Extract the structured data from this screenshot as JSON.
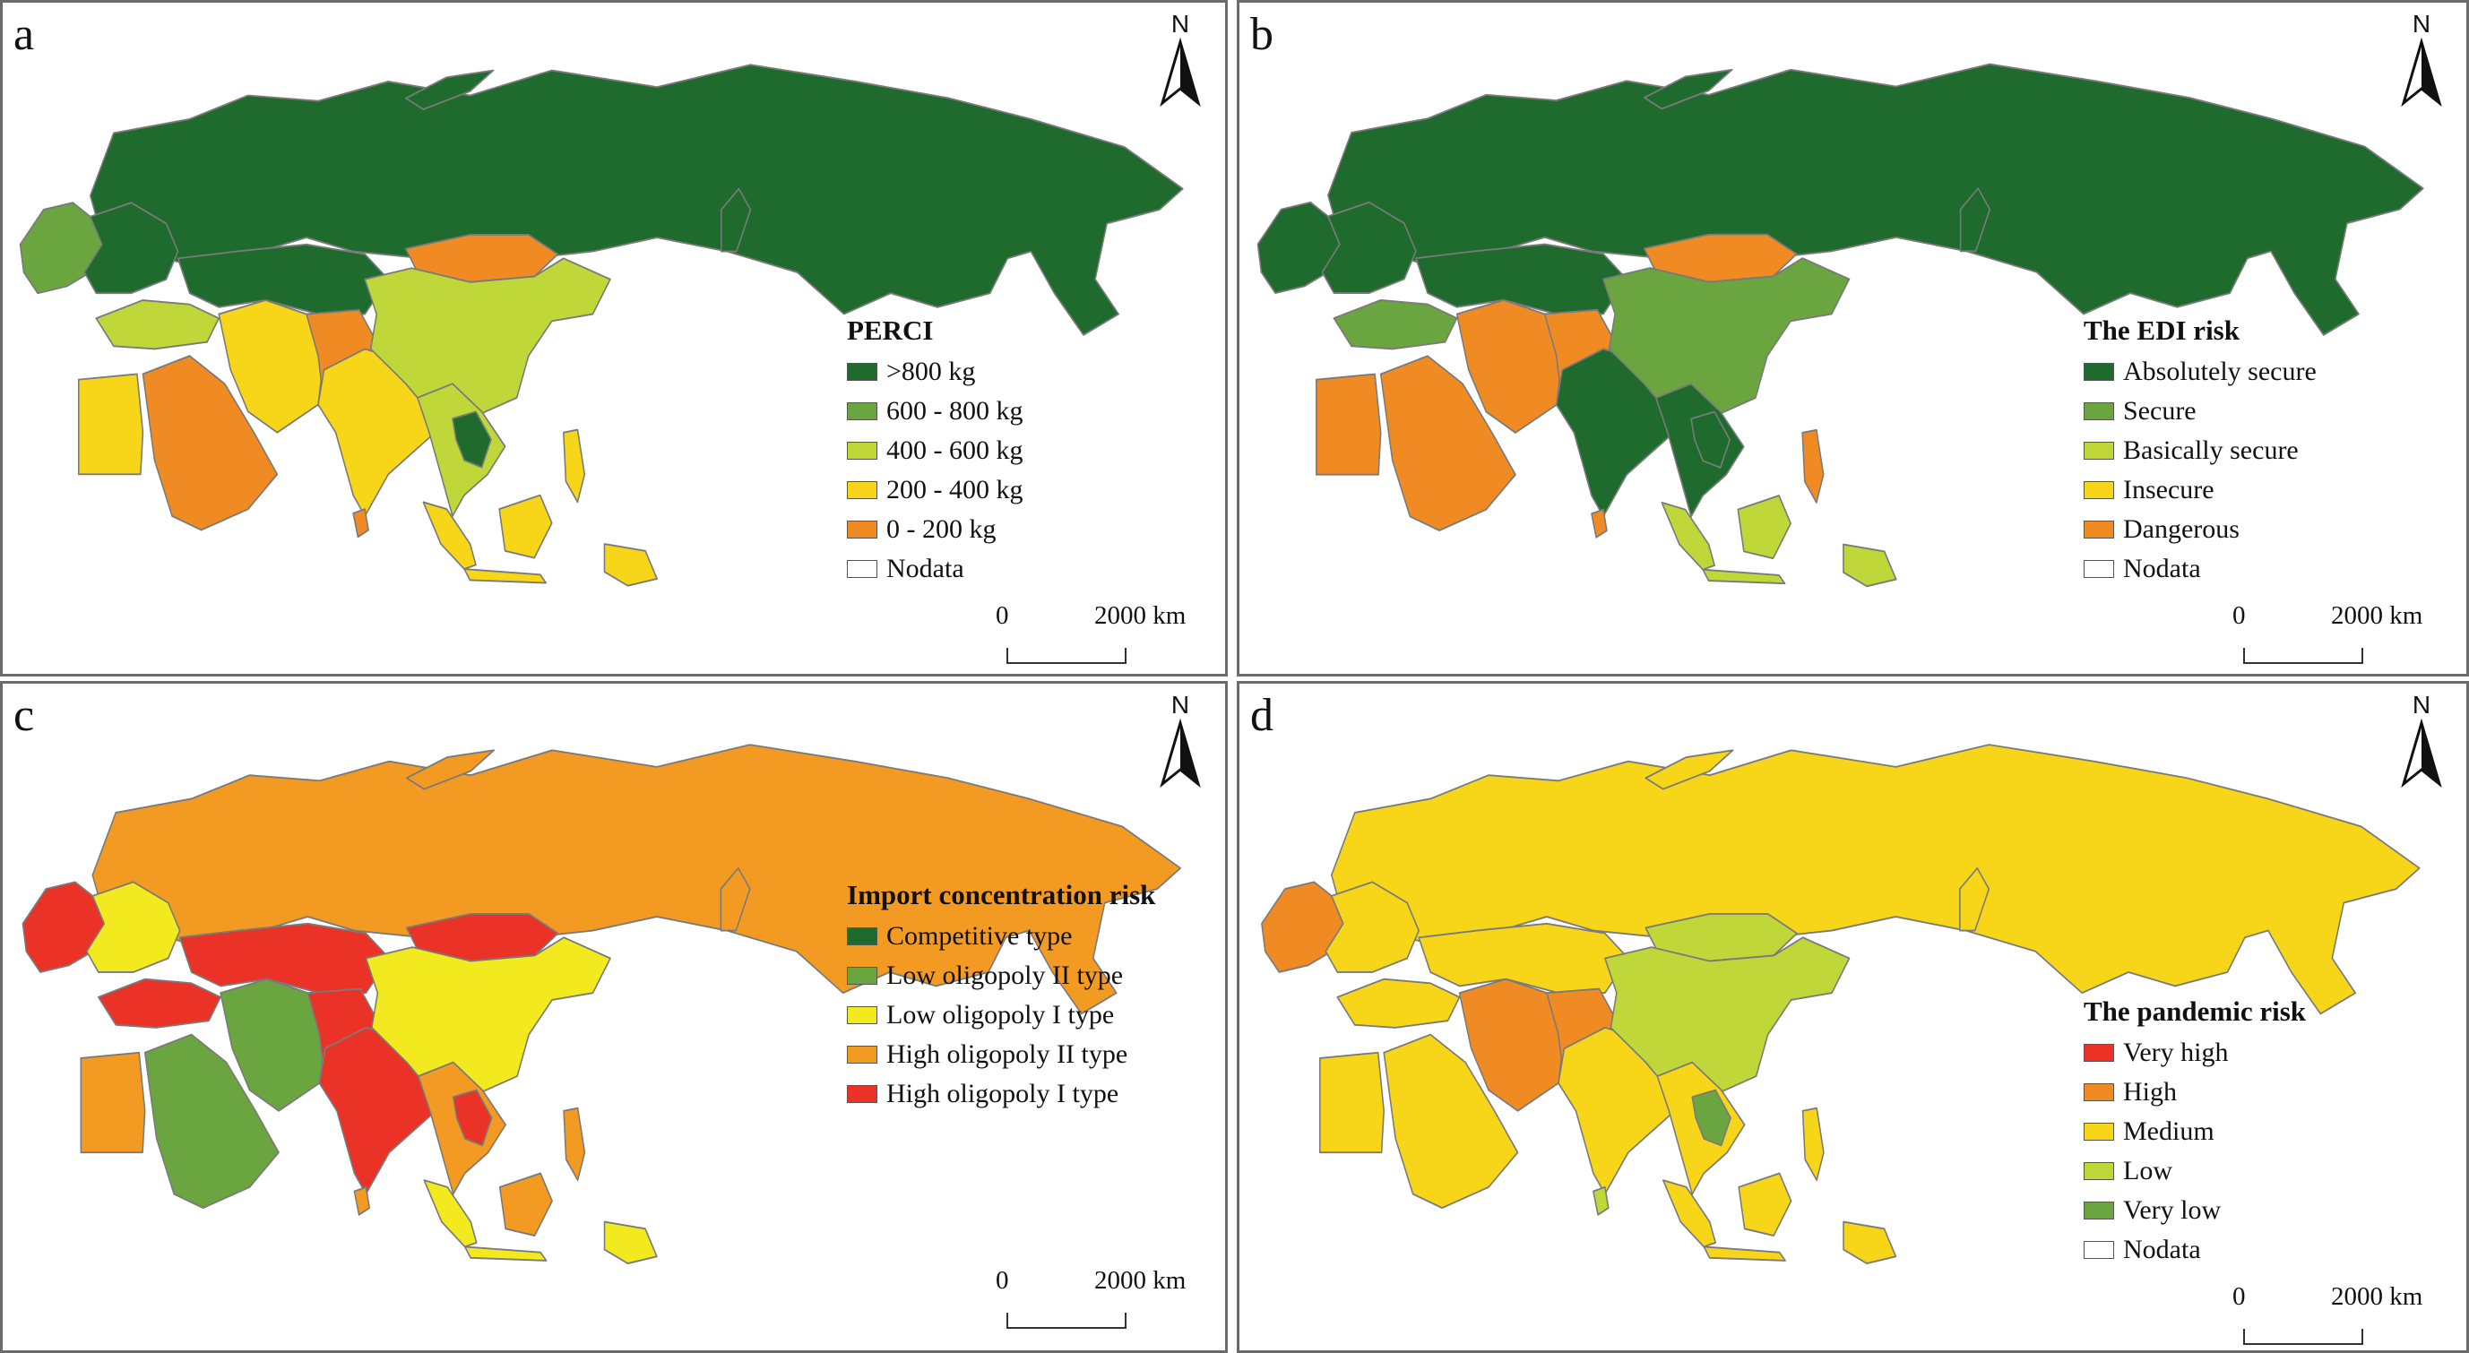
{
  "colors": {
    "dark_green": "#1e6b2d",
    "mid_green": "#6aa53f",
    "light_green": "#bfd739",
    "yellow": "#f7d61a",
    "bright_yellow": "#f2ea1f",
    "orange": "#f08b24",
    "red": "#ea3326",
    "border": "#7a7a7a"
  },
  "north_arrow": {
    "icon": "north-arrow-icon",
    "label": "N"
  },
  "scale_bar": {
    "zero": "0",
    "max": "2000 km"
  },
  "panels": [
    {
      "letter": "a",
      "legend_title": "PERCI",
      "legend_items": [
        {
          "label": ">800 kg",
          "color": "#1e6b2d"
        },
        {
          "label": "600 - 800 kg",
          "color": "#6aa53f"
        },
        {
          "label": "400 - 600 kg",
          "color": "#bfd739"
        },
        {
          "label": "200 - 400 kg",
          "color": "#f7d61a"
        },
        {
          "label": "0 - 200 kg",
          "color": "#f08b24"
        },
        {
          "label": "Nodata",
          "color": "#ffffff"
        }
      ],
      "regions": {
        "russia": "#1e6b2d",
        "europe_west": "#6aa53f",
        "europe_east": "#1e6b2d",
        "turkey": "#bfd739",
        "egypt": "#f7d61a",
        "arabia": "#f08b24",
        "iran": "#f7d61a",
        "central_asia": "#1e6b2d",
        "afghanistan": "#f08b24",
        "india": "#f7d61a",
        "china": "#bfd739",
        "mongolia": "#f08b24",
        "indochina": "#bfd739",
        "laos": "#1e6b2d",
        "sumatra": "#f7d61a",
        "borneo": "#f7d61a",
        "philippines": "#f7d61a",
        "srilanka": "#f08b24",
        "japan": "#1e6b2d",
        "newguinea": "#f7d61a"
      }
    },
    {
      "letter": "b",
      "legend_title": "The EDI risk",
      "legend_items": [
        {
          "label": "Absolutely secure",
          "color": "#1e6b2d"
        },
        {
          "label": "Secure",
          "color": "#6aa53f"
        },
        {
          "label": "Basically secure",
          "color": "#bfd739"
        },
        {
          "label": "Insecure",
          "color": "#f7d61a"
        },
        {
          "label": "Dangerous",
          "color": "#f08b24"
        },
        {
          "label": "Nodata",
          "color": "#ffffff"
        }
      ],
      "regions": {
        "russia": "#1e6b2d",
        "europe_west": "#1e6b2d",
        "europe_east": "#1e6b2d",
        "turkey": "#6aa53f",
        "egypt": "#f08b24",
        "arabia": "#f08b24",
        "iran": "#f08b24",
        "central_asia": "#1e6b2d",
        "afghanistan": "#f08b24",
        "india": "#1e6b2d",
        "china": "#6aa53f",
        "mongolia": "#f08b24",
        "indochina": "#1e6b2d",
        "laos": "#1e6b2d",
        "sumatra": "#bfd739",
        "borneo": "#bfd739",
        "philippines": "#f08b24",
        "srilanka": "#f08b24",
        "japan": "#1e6b2d",
        "newguinea": "#bfd739"
      }
    },
    {
      "letter": "c",
      "legend_title": "Import concentration risk",
      "legend_items": [
        {
          "label": "Competitive type",
          "color": "#1e6b2d"
        },
        {
          "label": "Low oligopoly II type",
          "color": "#6aa53f"
        },
        {
          "label": "Low oligopoly I  type",
          "color": "#f2ea1f"
        },
        {
          "label": "High oligopoly II type",
          "color": "#f29a22"
        },
        {
          "label": "High oligopoly I type",
          "color": "#ea3326"
        }
      ],
      "regions": {
        "russia": "#f29a22",
        "europe_west": "#ea3326",
        "europe_east": "#f2ea1f",
        "turkey": "#ea3326",
        "egypt": "#f29a22",
        "arabia": "#6aa53f",
        "iran": "#6aa53f",
        "central_asia": "#ea3326",
        "afghanistan": "#ea3326",
        "india": "#ea3326",
        "china": "#f2ea1f",
        "mongolia": "#ea3326",
        "indochina": "#f29a22",
        "laos": "#ea3326",
        "sumatra": "#f2ea1f",
        "borneo": "#f29a22",
        "philippines": "#f29a22",
        "srilanka": "#f29a22",
        "japan": "#f29a22",
        "newguinea": "#f2ea1f"
      }
    },
    {
      "letter": "d",
      "legend_title": "The pandemic risk",
      "legend_items": [
        {
          "label": "Very high",
          "color": "#ea3326"
        },
        {
          "label": "High",
          "color": "#f08b24"
        },
        {
          "label": "Medium",
          "color": "#f7d61a"
        },
        {
          "label": "Low",
          "color": "#bfd739"
        },
        {
          "label": "Very low",
          "color": "#6aa53f"
        },
        {
          "label": "Nodata",
          "color": "#ffffff"
        }
      ],
      "regions": {
        "russia": "#f7d61a",
        "europe_west": "#f08b24",
        "europe_east": "#f7d61a",
        "turkey": "#f7d61a",
        "egypt": "#f7d61a",
        "arabia": "#f7d61a",
        "iran": "#f08b24",
        "central_asia": "#f7d61a",
        "afghanistan": "#f08b24",
        "india": "#f7d61a",
        "china": "#bfd739",
        "mongolia": "#bfd739",
        "indochina": "#f7d61a",
        "laos": "#6aa53f",
        "sumatra": "#f7d61a",
        "borneo": "#f7d61a",
        "philippines": "#f7d61a",
        "srilanka": "#bfd739",
        "japan": "#f7d61a",
        "newguinea": "#f7d61a"
      }
    }
  ]
}
